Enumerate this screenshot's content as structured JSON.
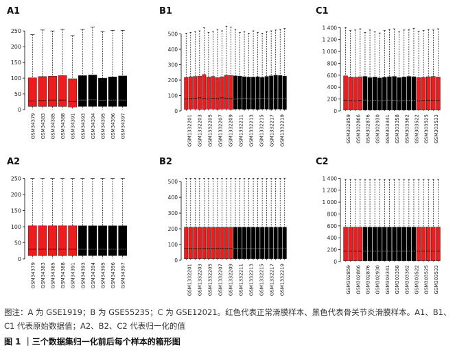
{
  "caption": {
    "note": "图注：A 为 GSE1919；B 为 GSE55235；C 为 GSE12021。红色代表正常滑膜样本、黑色代表骨关节炎滑膜样本。A1、B1、C1 代表原始数据值；A2、B2、C2 代表归一化的值",
    "title": "图 1 ｜三个数据集归一化前后每个样本的箱形图"
  },
  "colors": {
    "normal": "#ee1c1c",
    "oa": "#000000"
  },
  "chart_data": [
    {
      "panel_label": "A1",
      "type": "box",
      "ylim": [
        0,
        270
      ],
      "yticks": [
        0,
        50,
        100,
        150,
        200,
        250
      ],
      "categories": [
        "GSM34379",
        "GSM34383",
        "GSM34385",
        "GSM34388",
        "GSM34391",
        "GSM34393",
        "GSM34394",
        "GSM34395",
        "GSM34396",
        "GSM34397"
      ],
      "groups": [
        "normal",
        "normal",
        "normal",
        "normal",
        "normal",
        "oa",
        "oa",
        "oa",
        "oa",
        "oa"
      ],
      "q3": [
        101,
        105,
        106,
        108,
        98,
        108,
        110,
        100,
        104,
        107
      ],
      "q1": [
        10,
        10,
        10,
        10,
        8,
        10,
        10,
        10,
        10,
        10
      ],
      "median": [
        27,
        29,
        30,
        30,
        25,
        30,
        31,
        29,
        30,
        30
      ],
      "whisker_max": [
        238,
        253,
        250,
        255,
        235,
        255,
        262,
        248,
        252,
        252
      ],
      "whisker_min": [
        1,
        1,
        1,
        1,
        1,
        1,
        1,
        1,
        1,
        1
      ]
    },
    {
      "panel_label": "B1",
      "type": "box",
      "ylim": [
        0,
        560
      ],
      "yticks": [
        0,
        100,
        200,
        300,
        400,
        500
      ],
      "categories": [
        "GSM1332201",
        "GSM1332203",
        "GSM1332205",
        "GSM1332207",
        "GSM1332209",
        "GSM1332211",
        "GSM1332213",
        "GSM1332215",
        "GSM1332217",
        "GSM1332219"
      ],
      "groups": [
        "normal",
        "normal",
        "normal",
        "normal",
        "normal",
        "normal",
        "normal",
        "normal",
        "normal",
        "normal",
        "normal",
        "oa",
        "oa",
        "oa",
        "oa",
        "oa",
        "oa",
        "oa",
        "oa",
        "oa",
        "oa",
        "oa",
        "oa"
      ],
      "n_boxes": 23,
      "q3": [
        218,
        222,
        224,
        226,
        236,
        220,
        224,
        216,
        222,
        232,
        230,
        228,
        226,
        222,
        220,
        220,
        222,
        218,
        224,
        228,
        232,
        230,
        226
      ],
      "q1": [
        10,
        12,
        12,
        10,
        10,
        12,
        12,
        10,
        12,
        12,
        10,
        12,
        12,
        10,
        12,
        12,
        10,
        12,
        12,
        10,
        12,
        12,
        10
      ],
      "median": [
        78,
        80,
        82,
        85,
        80,
        78,
        82,
        80,
        85,
        82,
        80,
        78,
        80,
        82,
        80,
        78,
        80,
        82,
        80,
        78,
        80,
        82,
        80
      ],
      "whisker_max": [
        505,
        510,
        515,
        520,
        540,
        510,
        515,
        530,
        520,
        550,
        545,
        530,
        510,
        515,
        505,
        520,
        510,
        505,
        515,
        520,
        525,
        530,
        535
      ],
      "whisker_min": [
        1,
        1,
        1,
        1,
        1,
        1,
        1,
        1,
        1,
        1,
        1,
        1,
        1,
        1,
        1,
        1,
        1,
        1,
        1,
        1,
        1,
        1,
        1
      ]
    },
    {
      "panel_label": "C1",
      "type": "box",
      "ylim": [
        0,
        1450
      ],
      "yticks": [
        0,
        200,
        400,
        600,
        800,
        1000,
        1200,
        1400
      ],
      "categories": [
        "GSM302859",
        "GSM302866",
        "GSM302876",
        "GSM302930",
        "GSM303341",
        "GSM303358",
        "GSM303362",
        "GSM303522",
        "GSM303525",
        "GSM303533"
      ],
      "groups": [
        "normal",
        "normal",
        "normal",
        "normal",
        "oa",
        "oa",
        "oa",
        "oa",
        "oa",
        "oa",
        "oa",
        "oa",
        "oa",
        "oa",
        "oa",
        "normal",
        "normal",
        "normal",
        "normal",
        "normal"
      ],
      "n_boxes": 20,
      "q3": [
        590,
        570,
        565,
        575,
        580,
        560,
        570,
        555,
        565,
        575,
        580,
        560,
        570,
        580,
        575,
        560,
        565,
        575,
        580,
        570
      ],
      "q1": [
        15,
        15,
        15,
        15,
        15,
        15,
        15,
        15,
        15,
        15,
        15,
        15,
        15,
        15,
        15,
        15,
        15,
        15,
        15,
        15
      ],
      "median": [
        180,
        175,
        170,
        178,
        182,
        170,
        176,
        172,
        175,
        180,
        178,
        172,
        175,
        180,
        176,
        170,
        175,
        178,
        180,
        176
      ],
      "whisker_max": [
        1400,
        1350,
        1360,
        1380,
        1320,
        1360,
        1330,
        1310,
        1350,
        1370,
        1380,
        1330,
        1360,
        1370,
        1390,
        1340,
        1350,
        1370,
        1360,
        1380
      ],
      "whisker_min": [
        1,
        1,
        1,
        1,
        1,
        1,
        1,
        1,
        1,
        1,
        1,
        1,
        1,
        1,
        1,
        1,
        1,
        1,
        1,
        1
      ]
    },
    {
      "panel_label": "A2",
      "type": "box",
      "ylim": [
        0,
        260
      ],
      "yticks": [
        0,
        50,
        100,
        150,
        200,
        250
      ],
      "categories": [
        "GSM34379",
        "GSM34383",
        "GSM34385",
        "GSM34388",
        "GSM34391",
        "GSM34393",
        "GSM34394",
        "GSM34395",
        "GSM34396",
        "GSM34397"
      ],
      "groups": [
        "normal",
        "normal",
        "normal",
        "normal",
        "normal",
        "oa",
        "oa",
        "oa",
        "oa",
        "oa"
      ],
      "q3": [
        103,
        103,
        103,
        103,
        103,
        103,
        103,
        103,
        103,
        103
      ],
      "q1": [
        10,
        10,
        10,
        10,
        10,
        10,
        10,
        10,
        10,
        10
      ],
      "median": [
        30,
        30,
        30,
        30,
        30,
        30,
        30,
        30,
        30,
        30
      ],
      "whisker_max": [
        250,
        250,
        250,
        250,
        250,
        250,
        250,
        250,
        250,
        250
      ],
      "whisker_min": [
        1,
        1,
        1,
        1,
        1,
        1,
        1,
        1,
        1,
        1
      ]
    },
    {
      "panel_label": "B2",
      "type": "box",
      "ylim": [
        0,
        540
      ],
      "yticks": [
        0,
        100,
        200,
        300,
        400,
        500
      ],
      "categories": [
        "GSM1332201",
        "GSM1332203",
        "GSM1332205",
        "GSM1332207",
        "GSM1332209",
        "GSM1332211",
        "GSM1332213",
        "GSM1332215",
        "GSM1332217",
        "GSM1332219"
      ],
      "groups": [
        "normal",
        "normal",
        "normal",
        "normal",
        "normal",
        "normal",
        "normal",
        "normal",
        "normal",
        "normal",
        "normal",
        "oa",
        "oa",
        "oa",
        "oa",
        "oa",
        "oa",
        "oa",
        "oa",
        "oa",
        "oa",
        "oa",
        "oa"
      ],
      "n_boxes": 23,
      "q3": [
        210,
        210,
        210,
        210,
        210,
        210,
        210,
        210,
        210,
        210,
        210,
        210,
        210,
        210,
        210,
        210,
        210,
        210,
        210,
        210,
        210,
        210,
        210
      ],
      "q1": [
        10,
        10,
        10,
        10,
        10,
        10,
        10,
        10,
        10,
        10,
        10,
        10,
        10,
        10,
        10,
        10,
        10,
        10,
        10,
        10,
        10,
        10,
        10
      ],
      "median": [
        75,
        75,
        75,
        75,
        75,
        75,
        75,
        75,
        75,
        75,
        75,
        75,
        75,
        75,
        75,
        75,
        75,
        75,
        75,
        75,
        75,
        75,
        75
      ],
      "whisker_max": [
        520,
        520,
        520,
        520,
        520,
        520,
        520,
        520,
        520,
        520,
        520,
        520,
        520,
        520,
        520,
        520,
        520,
        520,
        520,
        520,
        520,
        520,
        520
      ],
      "whisker_min": [
        1,
        1,
        1,
        1,
        1,
        1,
        1,
        1,
        1,
        1,
        1,
        1,
        1,
        1,
        1,
        1,
        1,
        1,
        1,
        1,
        1,
        1,
        1
      ]
    },
    {
      "panel_label": "C2",
      "type": "box",
      "ylim": [
        0,
        1450
      ],
      "yticks": [
        0,
        200,
        400,
        600,
        800,
        1000,
        1200,
        1400
      ],
      "categories": [
        "GSM302859",
        "GSM302866",
        "GSM302876",
        "GSM302930",
        "GSM303341",
        "GSM303358",
        "GSM303362",
        "GSM303522",
        "GSM303525",
        "GSM303533"
      ],
      "groups": [
        "normal",
        "normal",
        "normal",
        "normal",
        "oa",
        "oa",
        "oa",
        "oa",
        "oa",
        "oa",
        "oa",
        "oa",
        "oa",
        "oa",
        "oa",
        "normal",
        "normal",
        "normal",
        "normal",
        "normal"
      ],
      "n_boxes": 20,
      "q3": [
        580,
        580,
        580,
        580,
        580,
        580,
        580,
        580,
        580,
        580,
        580,
        580,
        580,
        580,
        580,
        580,
        580,
        580,
        580,
        580
      ],
      "q1": [
        15,
        15,
        15,
        15,
        15,
        15,
        15,
        15,
        15,
        15,
        15,
        15,
        15,
        15,
        15,
        15,
        15,
        15,
        15,
        15
      ],
      "median": [
        175,
        175,
        175,
        175,
        175,
        175,
        175,
        175,
        175,
        175,
        175,
        175,
        175,
        175,
        175,
        175,
        175,
        175,
        175,
        175
      ],
      "whisker_max": [
        1380,
        1380,
        1380,
        1380,
        1380,
        1380,
        1380,
        1380,
        1380,
        1380,
        1380,
        1380,
        1380,
        1380,
        1380,
        1380,
        1380,
        1380,
        1380,
        1380
      ],
      "whisker_min": [
        1,
        1,
        1,
        1,
        1,
        1,
        1,
        1,
        1,
        1,
        1,
        1,
        1,
        1,
        1,
        1,
        1,
        1,
        1,
        1
      ]
    }
  ]
}
